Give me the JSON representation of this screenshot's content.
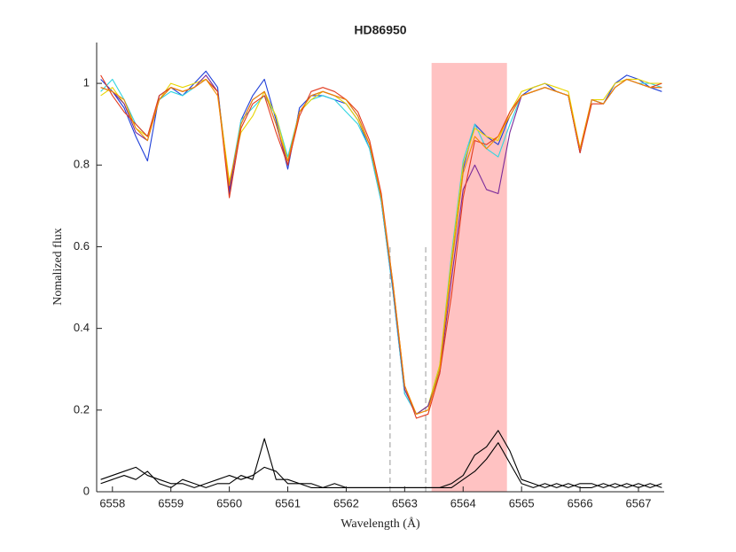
{
  "chart_data": {
    "type": "line",
    "title": "HD86950",
    "x_label": "Wavelength (Å)",
    "y_label": "Nomalized flux",
    "xlim": [
      6557.73,
      6567.44
    ],
    "ylim": [
      0,
      1.1
    ],
    "xticks": [
      6558,
      6559,
      6560,
      6561,
      6562,
      6563,
      6564,
      6565,
      6566,
      6567
    ],
    "yticks": [
      0,
      0.2,
      0.4,
      0.6,
      0.8,
      1
    ],
    "highlight": {
      "x": [
        6563.46,
        6564.75
      ],
      "y_top": 1.05,
      "color": "#ffc2c2"
    },
    "vlines": {
      "x": [
        6562.75,
        6563.36
      ],
      "y_top": 0.6,
      "color": "#999999"
    },
    "x": [
      6557.8,
      6558.0,
      6558.2,
      6558.4,
      6558.6,
      6558.8,
      6559.0,
      6559.2,
      6559.4,
      6559.6,
      6559.8,
      6560.0,
      6560.2,
      6560.4,
      6560.6,
      6560.8,
      6561.0,
      6561.2,
      6561.4,
      6561.6,
      6561.8,
      6562.0,
      6562.2,
      6562.4,
      6562.6,
      6562.8,
      6563.0,
      6563.2,
      6563.4,
      6563.6,
      6563.8,
      6564.0,
      6564.2,
      6564.4,
      6564.6,
      6564.8,
      6565.0,
      6565.2,
      6565.4,
      6565.6,
      6565.8,
      6566.0,
      6566.2,
      6566.4,
      6566.6,
      6566.8,
      6567.0,
      6567.2,
      6567.4
    ],
    "series": [
      {
        "color": "#000000",
        "values": [
          0.03,
          0.04,
          0.05,
          0.06,
          0.04,
          0.03,
          0.02,
          0.02,
          0.01,
          0.02,
          0.03,
          0.04,
          0.03,
          0.04,
          0.06,
          0.05,
          0.02,
          0.02,
          0.01,
          0.01,
          0.02,
          0.01,
          0.01,
          0.01,
          0.01,
          0.01,
          0.01,
          0.01,
          0.01,
          0.01,
          0.01,
          0.03,
          0.05,
          0.08,
          0.12,
          0.07,
          0.02,
          0.01,
          0.02,
          0.01,
          0.02,
          0.01,
          0.01,
          0.02,
          0.01,
          0.02,
          0.01,
          0.02,
          0.01
        ]
      },
      {
        "color": "#000000",
        "values": [
          0.02,
          0.03,
          0.04,
          0.03,
          0.05,
          0.02,
          0.01,
          0.03,
          0.02,
          0.01,
          0.02,
          0.02,
          0.04,
          0.03,
          0.13,
          0.03,
          0.03,
          0.02,
          0.02,
          0.01,
          0.01,
          0.01,
          0.01,
          0.01,
          0.01,
          0.01,
          0.01,
          0.01,
          0.01,
          0.01,
          0.02,
          0.04,
          0.09,
          0.11,
          0.15,
          0.1,
          0.03,
          0.02,
          0.01,
          0.02,
          0.01,
          0.02,
          0.02,
          0.01,
          0.02,
          0.01,
          0.02,
          0.01,
          0.02
        ]
      },
      {
        "color": "#1f3fd8",
        "values": [
          1.01,
          0.98,
          0.94,
          0.87,
          0.81,
          0.97,
          0.99,
          0.97,
          1.0,
          1.03,
          0.99,
          0.73,
          0.91,
          0.97,
          1.01,
          0.91,
          0.79,
          0.94,
          0.97,
          0.97,
          0.96,
          0.95,
          0.91,
          0.84,
          0.71,
          0.49,
          0.24,
          0.19,
          0.21,
          0.3,
          0.56,
          0.79,
          0.9,
          0.87,
          0.85,
          0.92,
          0.97,
          0.99,
          1.0,
          0.98,
          0.97,
          0.83,
          0.96,
          0.95,
          1.0,
          1.02,
          1.01,
          0.99,
          0.98
        ]
      },
      {
        "color": "#30d5e0",
        "values": [
          0.98,
          1.01,
          0.96,
          0.9,
          0.87,
          0.96,
          0.98,
          0.97,
          0.99,
          1.01,
          0.98,
          0.75,
          0.91,
          0.94,
          0.97,
          0.92,
          0.82,
          0.93,
          0.96,
          0.97,
          0.96,
          0.93,
          0.9,
          0.84,
          0.71,
          0.49,
          0.24,
          0.19,
          0.21,
          0.31,
          0.58,
          0.81,
          0.9,
          0.84,
          0.82,
          0.9,
          0.97,
          0.98,
          0.99,
          0.98,
          0.97,
          0.83,
          0.96,
          0.95,
          0.99,
          1.01,
          1.0,
          1.0,
          0.99
        ]
      },
      {
        "color": "#e8d500",
        "values": [
          0.97,
          0.99,
          0.95,
          0.89,
          0.87,
          0.96,
          1.0,
          0.99,
          1.0,
          1.01,
          0.98,
          0.76,
          0.88,
          0.92,
          0.98,
          0.92,
          0.81,
          0.93,
          0.96,
          0.98,
          0.97,
          0.95,
          0.91,
          0.85,
          0.72,
          0.5,
          0.25,
          0.19,
          0.21,
          0.31,
          0.57,
          0.8,
          0.89,
          0.87,
          0.86,
          0.93,
          0.98,
          0.99,
          1.0,
          0.99,
          0.98,
          0.84,
          0.96,
          0.96,
          1.0,
          1.01,
          1.01,
          1.0,
          1.0
        ]
      },
      {
        "color": "#7a2a9a",
        "values": [
          0.99,
          0.98,
          0.95,
          0.88,
          0.86,
          0.96,
          0.99,
          0.98,
          0.99,
          1.02,
          0.98,
          0.74,
          0.9,
          0.96,
          0.98,
          0.9,
          0.8,
          0.93,
          0.97,
          0.98,
          0.97,
          0.96,
          0.92,
          0.85,
          0.72,
          0.5,
          0.25,
          0.19,
          0.21,
          0.29,
          0.52,
          0.74,
          0.8,
          0.74,
          0.73,
          0.88,
          0.97,
          0.98,
          0.99,
          0.98,
          0.97,
          0.83,
          0.96,
          0.95,
          0.99,
          1.01,
          1.0,
          0.99,
          0.99
        ]
      },
      {
        "color": "#e23a1e",
        "values": [
          1.02,
          0.97,
          0.93,
          0.9,
          0.87,
          0.97,
          0.99,
          0.98,
          0.99,
          1.01,
          0.98,
          0.72,
          0.89,
          0.95,
          0.97,
          0.88,
          0.8,
          0.92,
          0.98,
          0.99,
          0.98,
          0.96,
          0.93,
          0.86,
          0.73,
          0.51,
          0.26,
          0.18,
          0.19,
          0.29,
          0.48,
          0.72,
          0.86,
          0.85,
          0.87,
          0.93,
          0.97,
          0.98,
          0.99,
          0.98,
          0.97,
          0.83,
          0.95,
          0.95,
          0.99,
          1.01,
          1.0,
          0.99,
          1.0
        ]
      },
      {
        "color": "#f08a00",
        "values": [
          0.99,
          0.98,
          0.96,
          0.89,
          0.86,
          0.96,
          0.99,
          0.98,
          0.99,
          1.01,
          0.97,
          0.75,
          0.9,
          0.96,
          0.98,
          0.9,
          0.81,
          0.93,
          0.97,
          0.98,
          0.97,
          0.96,
          0.92,
          0.85,
          0.72,
          0.51,
          0.26,
          0.19,
          0.2,
          0.3,
          0.55,
          0.78,
          0.87,
          0.84,
          0.87,
          0.92,
          0.97,
          0.98,
          0.99,
          0.98,
          0.97,
          0.84,
          0.96,
          0.95,
          0.99,
          1.01,
          1.0,
          0.99,
          0.99
        ]
      }
    ]
  }
}
